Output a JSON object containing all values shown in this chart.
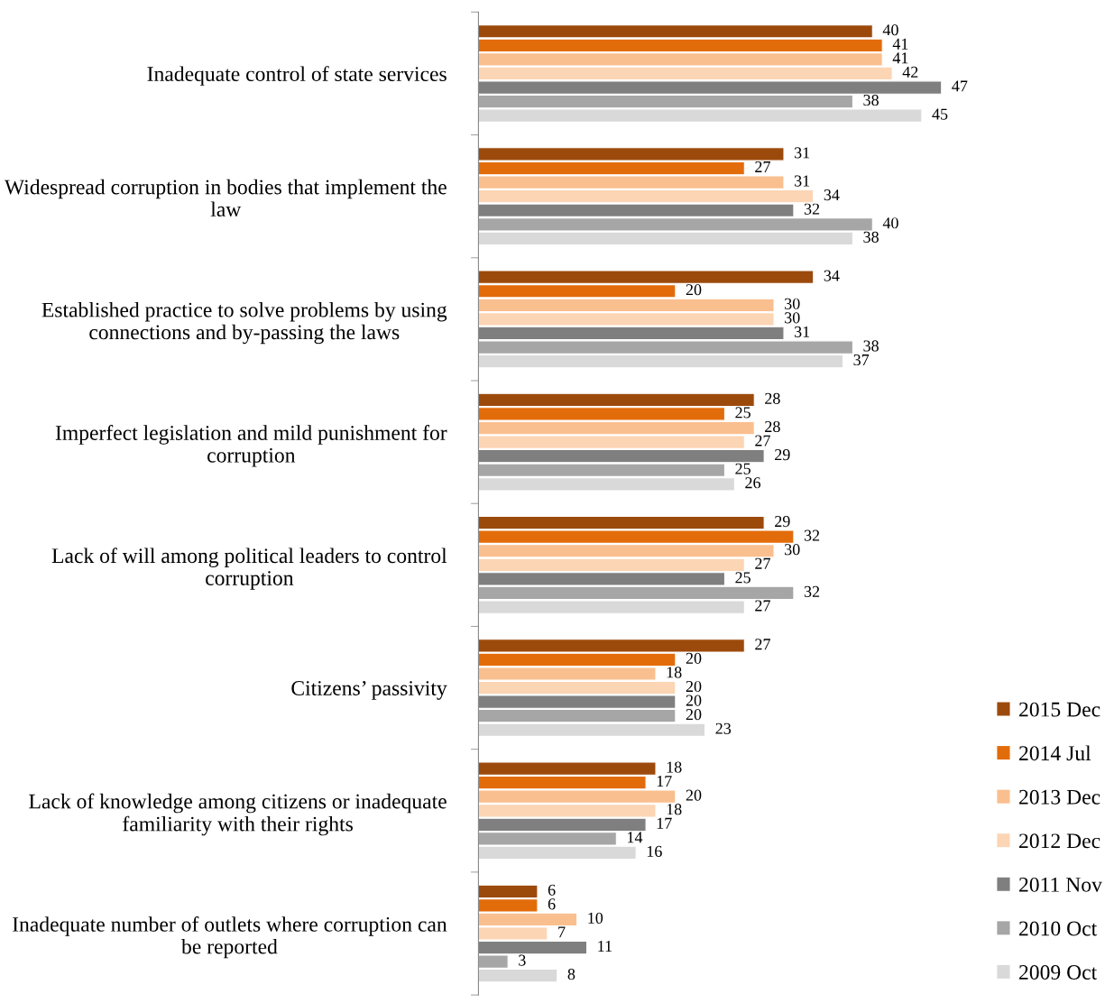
{
  "chart_data": {
    "type": "bar",
    "orientation": "horizontal",
    "data_labels": true,
    "legend": "bottom right",
    "grid": false,
    "categories": [
      "Inadequate control of state services",
      "Widespread corruption in bodies that implement the law",
      "Established practice to solve problems by using connections and by-passing the laws",
      "Imperfect legislation and mild punishment for corruption",
      "Lack of will among political leaders to control corruption",
      "Citizens’ passivity",
      "Lack of knowledge among citizens or inadequate familiarity with their rights",
      "Inadequate number of outlets where corruption can be reported"
    ],
    "series": [
      {
        "name": "2015 Dec",
        "color": "#9c4a0c",
        "values": [
          40,
          31,
          34,
          28,
          29,
          27,
          18,
          6
        ]
      },
      {
        "name": "2014 Jul",
        "color": "#e36c0a",
        "values": [
          41,
          27,
          20,
          25,
          32,
          20,
          17,
          6
        ]
      },
      {
        "name": "2013 Dec",
        "color": "#fabf8f",
        "values": [
          41,
          31,
          30,
          28,
          30,
          18,
          20,
          10
        ]
      },
      {
        "name": "2012 Dec",
        "color": "#fcd5b4",
        "values": [
          42,
          34,
          30,
          27,
          27,
          20,
          18,
          7
        ]
      },
      {
        "name": "2011 Nov",
        "color": "#7f7f7f",
        "values": [
          47,
          32,
          31,
          29,
          25,
          20,
          17,
          11
        ]
      },
      {
        "name": "2010 Oct",
        "color": "#a6a6a6",
        "values": [
          38,
          40,
          38,
          25,
          32,
          20,
          14,
          3
        ]
      },
      {
        "name": "2009 Oct",
        "color": "#d9d9d9",
        "values": [
          45,
          38,
          37,
          26,
          27,
          23,
          16,
          8
        ]
      }
    ]
  }
}
